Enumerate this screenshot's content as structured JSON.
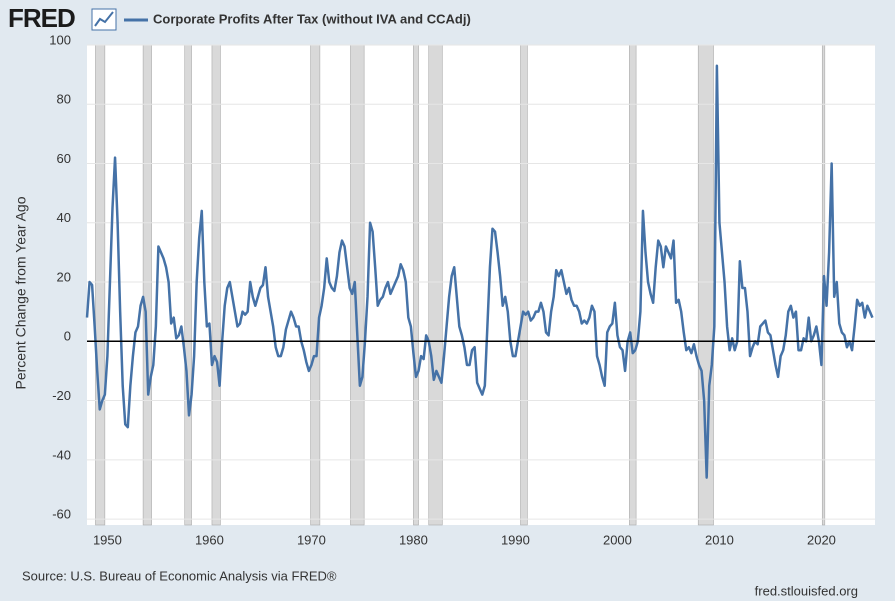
{
  "logo": "FRED",
  "chart_data": {
    "type": "line",
    "series": [
      {
        "name": "Corporate Profits After Tax (without IVA and CCAdj)",
        "color": "#4572a7",
        "values": [
          8,
          20,
          19,
          5,
          -10,
          -23,
          -20,
          -18,
          -5,
          20,
          45,
          62,
          40,
          10,
          -15,
          -28,
          -29,
          -15,
          -5,
          3,
          5,
          12,
          15,
          10,
          -18,
          -12,
          -8,
          5,
          32,
          30,
          28,
          25,
          20,
          6,
          8,
          1,
          2,
          5,
          -2,
          -10,
          -25,
          -18,
          -5,
          20,
          35,
          44,
          20,
          5,
          6,
          -8,
          -5,
          -7,
          -15,
          0,
          12,
          18,
          20,
          15,
          10,
          5,
          6,
          10,
          9,
          10,
          20,
          15,
          12,
          15,
          18,
          19,
          25,
          15,
          10,
          5,
          -2,
          -5,
          -5,
          -2,
          4,
          7,
          10,
          8,
          5,
          5,
          0,
          -3,
          -7,
          -10,
          -8,
          -5,
          -5,
          8,
          12,
          18,
          28,
          20,
          18,
          17,
          22,
          30,
          34,
          32,
          25,
          18,
          16,
          20,
          2,
          -15,
          -12,
          0,
          15,
          40,
          37,
          25,
          12,
          14,
          15,
          18,
          20,
          16,
          18,
          20,
          22,
          26,
          24,
          20,
          8,
          5,
          -4,
          -12,
          -10,
          -5,
          -6,
          2,
          0,
          -5,
          -13,
          -10,
          -12,
          -14,
          -5,
          5,
          15,
          22,
          25,
          15,
          5,
          2,
          -2,
          -8,
          -8,
          -3,
          -2,
          -14,
          -16,
          -18,
          -15,
          5,
          25,
          38,
          37,
          30,
          22,
          12,
          15,
          10,
          0,
          -5,
          -5,
          0,
          5,
          10,
          9,
          10,
          7,
          8,
          10,
          10,
          13,
          10,
          3,
          2,
          10,
          15,
          24,
          22,
          24,
          20,
          16,
          18,
          14,
          12,
          12,
          10,
          6,
          7,
          6,
          8,
          12,
          10,
          -5,
          -8,
          -12,
          -15,
          3,
          5,
          6,
          13,
          2,
          -2,
          -3,
          -10,
          0,
          3,
          -4,
          -3,
          0,
          10,
          44,
          30,
          20,
          16,
          13,
          25,
          34,
          32,
          25,
          32,
          30,
          28,
          34,
          13,
          14,
          10,
          3,
          -3,
          -2,
          -4,
          -1,
          -5,
          -8,
          -10,
          -20,
          -46,
          -15,
          -8,
          5,
          93,
          40,
          30,
          20,
          5,
          -3,
          1,
          -3,
          0,
          27,
          18,
          18,
          10,
          -5,
          -2,
          0,
          -1,
          5,
          6,
          7,
          3,
          2,
          -3,
          -8,
          -12,
          -5,
          -3,
          2,
          10,
          12,
          8,
          10,
          -3,
          -3,
          1,
          0,
          8,
          0,
          2,
          5,
          0,
          -8,
          22,
          12,
          30,
          60,
          15,
          20,
          6,
          3,
          2,
          -2,
          0,
          -3,
          5,
          14,
          12,
          13,
          8,
          12,
          10,
          8
        ]
      }
    ],
    "x": [
      1948,
      1948.25,
      1948.5,
      1948.75,
      1949,
      1949.25,
      1949.5,
      1949.75,
      1950,
      1950.25,
      1950.5,
      1950.75,
      1951,
      1951.25,
      1951.5,
      1951.75,
      1952,
      1952.25,
      1952.5,
      1952.75,
      1953,
      1953.25,
      1953.5,
      1953.75,
      1954,
      1954.25,
      1954.5,
      1954.75,
      1955,
      1955.25,
      1955.5,
      1955.75,
      1956,
      1956.25,
      1956.5,
      1956.75,
      1957,
      1957.25,
      1957.5,
      1957.75,
      1958,
      1958.25,
      1958.5,
      1958.75,
      1959,
      1959.25,
      1959.5,
      1959.75,
      1960,
      1960.25,
      1960.5,
      1960.75,
      1961,
      1961.25,
      1961.5,
      1961.75,
      1962,
      1962.25,
      1962.5,
      1962.75,
      1963,
      1963.25,
      1963.5,
      1963.75,
      1964,
      1964.25,
      1964.5,
      1964.75,
      1965,
      1965.25,
      1965.5,
      1965.75,
      1966,
      1966.25,
      1966.5,
      1966.75,
      1967,
      1967.25,
      1967.5,
      1967.75,
      1968,
      1968.25,
      1968.5,
      1968.75,
      1969,
      1969.25,
      1969.5,
      1969.75,
      1970,
      1970.25,
      1970.5,
      1970.75,
      1971,
      1971.25,
      1971.5,
      1971.75,
      1972,
      1972.25,
      1972.5,
      1972.75,
      1973,
      1973.25,
      1973.5,
      1973.75,
      1974,
      1974.25,
      1974.5,
      1974.75,
      1975,
      1975.25,
      1975.5,
      1975.75,
      1976,
      1976.25,
      1976.5,
      1976.75,
      1977,
      1977.25,
      1977.5,
      1977.75,
      1978,
      1978.25,
      1978.5,
      1978.75,
      1979,
      1979.25,
      1979.5,
      1979.75,
      1980,
      1980.25,
      1980.5,
      1980.75,
      1981,
      1981.25,
      1981.5,
      1981.75,
      1982,
      1982.25,
      1982.5,
      1982.75,
      1983,
      1983.25,
      1983.5,
      1983.75,
      1984,
      1984.25,
      1984.5,
      1984.75,
      1985,
      1985.25,
      1985.5,
      1985.75,
      1986,
      1986.25,
      1986.5,
      1986.75,
      1987,
      1987.25,
      1987.5,
      1987.75,
      1988,
      1988.25,
      1988.5,
      1988.75,
      1989,
      1989.25,
      1989.5,
      1989.75,
      1990,
      1990.25,
      1990.5,
      1990.75,
      1991,
      1991.25,
      1991.5,
      1991.75,
      1992,
      1992.25,
      1992.5,
      1992.75,
      1993,
      1993.25,
      1993.5,
      1993.75,
      1994,
      1994.25,
      1994.5,
      1994.75,
      1995,
      1995.25,
      1995.5,
      1995.75,
      1996,
      1996.25,
      1996.5,
      1996.75,
      1997,
      1997.25,
      1997.5,
      1997.75,
      1998,
      1998.25,
      1998.5,
      1998.75,
      1999,
      1999.25,
      1999.5,
      1999.75,
      2000,
      2000.25,
      2000.5,
      2000.75,
      2001,
      2001.25,
      2001.5,
      2001.75,
      2002,
      2002.25,
      2002.5,
      2002.75,
      2003,
      2003.25,
      2003.5,
      2003.75,
      2004,
      2004.25,
      2004.5,
      2004.75,
      2005,
      2005.25,
      2005.5,
      2005.75,
      2006,
      2006.25,
      2006.5,
      2006.75,
      2007,
      2007.25,
      2007.5,
      2007.75,
      2008,
      2008.25,
      2008.5,
      2008.75,
      2009,
      2009.25,
      2009.5,
      2009.75,
      2010,
      2010.25,
      2010.5,
      2010.75,
      2011,
      2011.25,
      2011.5,
      2011.75,
      2012,
      2012.25,
      2012.5,
      2012.75,
      2013,
      2013.25,
      2013.5,
      2013.75,
      2014,
      2014.25,
      2014.5,
      2014.75,
      2015,
      2015.25,
      2015.5,
      2015.75,
      2016,
      2016.25,
      2016.5,
      2016.75,
      2017,
      2017.25,
      2017.5,
      2017.75,
      2018,
      2018.25,
      2018.5,
      2018.75,
      2019,
      2019.25,
      2019.5,
      2019.75,
      2020,
      2020.25,
      2020.5,
      2020.75,
      2021,
      2021.25,
      2021.5,
      2021.75,
      2022,
      2022.25,
      2022.5,
      2022.75,
      2023,
      2023.25,
      2023.5,
      2023.75,
      2024,
      2024.25,
      2024.5,
      2024.75,
      2025
    ],
    "recessions": [
      [
        1948.83,
        1949.75
      ],
      [
        1953.5,
        1954.33
      ],
      [
        1957.58,
        1958.25
      ],
      [
        1960.25,
        1961.08
      ],
      [
        1969.92,
        1970.83
      ],
      [
        1973.83,
        1975.17
      ],
      [
        1980.0,
        1980.5
      ],
      [
        1981.5,
        1982.83
      ],
      [
        1990.5,
        1991.17
      ],
      [
        2001.17,
        2001.83
      ],
      [
        2007.92,
        2009.42
      ],
      [
        2020.08,
        2020.33
      ]
    ],
    "recession_color": "#d9d9d9",
    "ylabel": "Percent Change from Year Ago",
    "xlim": [
      1948,
      2025.25
    ],
    "xticks": [
      1950,
      1960,
      1970,
      1980,
      1990,
      2000,
      2010,
      2020
    ],
    "ylim": [
      -62,
      100
    ],
    "yticks": [
      -60,
      -40,
      -20,
      0,
      20,
      40,
      60,
      80,
      100
    ],
    "grid": true,
    "source": "Source: U.S. Bureau of Economic Analysis via FRED®",
    "url": "fred.stlouisfed.org"
  }
}
